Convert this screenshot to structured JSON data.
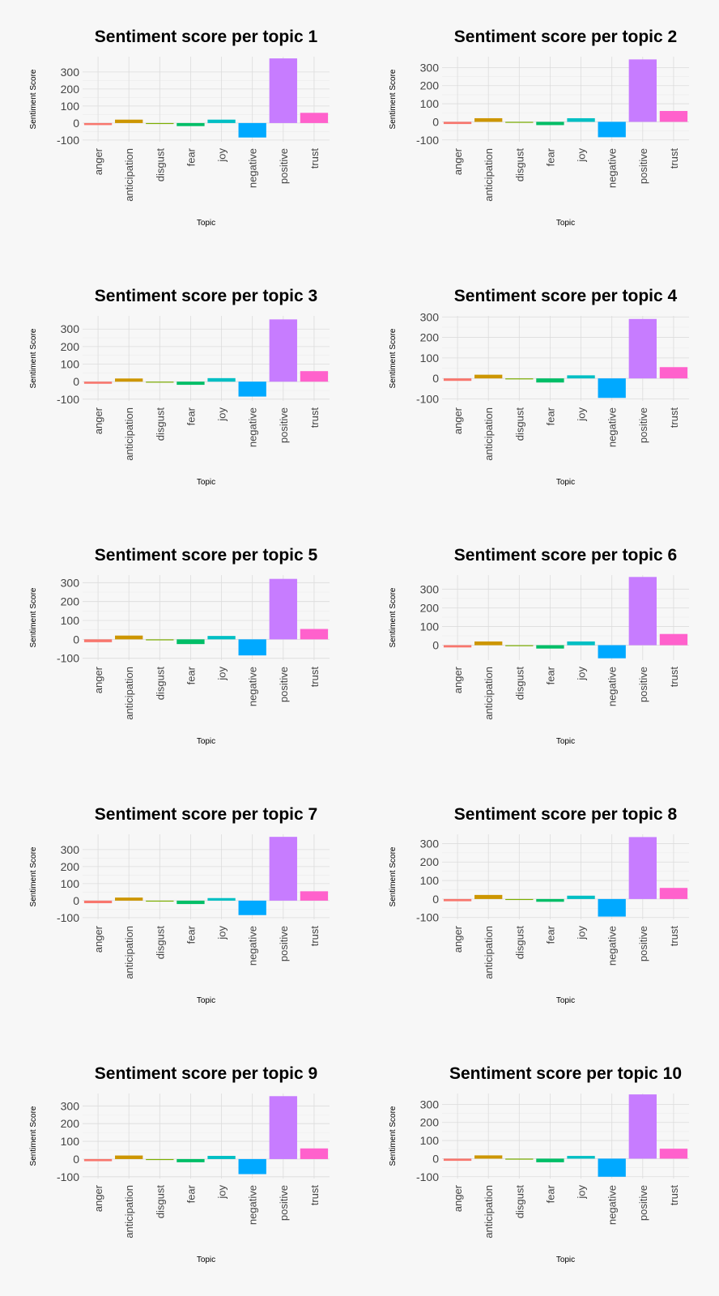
{
  "chart_data": [
    {
      "type": "bar",
      "title": "Sentiment score per topic  1",
      "xlabel": "Topic",
      "ylabel": "Sentiment Score",
      "categories": [
        "anger",
        "anticipation",
        "disgust",
        "fear",
        "joy",
        "negative",
        "positive",
        "trust"
      ],
      "values": [
        -12,
        20,
        -2,
        -18,
        20,
        -85,
        380,
        60
      ],
      "ylim": [
        -110,
        390
      ],
      "yticks": [
        -100,
        0,
        100,
        200,
        300
      ],
      "colors": [
        "#F8766D",
        "#CD9600",
        "#7CAE00",
        "#00BE67",
        "#00BFC4",
        "#00A9FF",
        "#C77CFF",
        "#FF61CC"
      ]
    },
    {
      "type": "bar",
      "title": "Sentiment score per topic  2",
      "xlabel": "Topic",
      "ylabel": "Sentiment Score",
      "categories": [
        "anger",
        "anticipation",
        "disgust",
        "fear",
        "joy",
        "negative",
        "positive",
        "trust"
      ],
      "values": [
        -12,
        20,
        -2,
        -18,
        20,
        -85,
        345,
        60
      ],
      "ylim": [
        -110,
        360
      ],
      "yticks": [
        -100,
        0,
        100,
        200,
        300
      ],
      "colors": [
        "#F8766D",
        "#CD9600",
        "#7CAE00",
        "#00BE67",
        "#00BFC4",
        "#00A9FF",
        "#C77CFF",
        "#FF61CC"
      ]
    },
    {
      "type": "bar",
      "title": "Sentiment score per topic  3",
      "xlabel": "Topic",
      "ylabel": "Sentiment Score",
      "categories": [
        "anger",
        "anticipation",
        "disgust",
        "fear",
        "joy",
        "negative",
        "positive",
        "trust"
      ],
      "values": [
        -12,
        18,
        -3,
        -18,
        20,
        -85,
        355,
        60
      ],
      "ylim": [
        -110,
        375
      ],
      "yticks": [
        -100,
        0,
        100,
        200,
        300
      ],
      "colors": [
        "#F8766D",
        "#CD9600",
        "#7CAE00",
        "#00BE67",
        "#00BFC4",
        "#00A9FF",
        "#C77CFF",
        "#FF61CC"
      ]
    },
    {
      "type": "bar",
      "title": "Sentiment score per topic  4",
      "xlabel": "Topic",
      "ylabel": "Sentiment Score",
      "categories": [
        "anger",
        "anticipation",
        "disgust",
        "fear",
        "joy",
        "negative",
        "positive",
        "trust"
      ],
      "values": [
        -12,
        18,
        -2,
        -20,
        15,
        -95,
        290,
        55
      ],
      "ylim": [
        -110,
        305
      ],
      "yticks": [
        -100,
        0,
        100,
        200,
        300
      ],
      "colors": [
        "#F8766D",
        "#CD9600",
        "#7CAE00",
        "#00BE67",
        "#00BFC4",
        "#00A9FF",
        "#C77CFF",
        "#FF61CC"
      ]
    },
    {
      "type": "bar",
      "title": "Sentiment score per topic  5",
      "xlabel": "Topic",
      "ylabel": "Sentiment Score",
      "categories": [
        "anger",
        "anticipation",
        "disgust",
        "fear",
        "joy",
        "negative",
        "positive",
        "trust"
      ],
      "values": [
        -15,
        20,
        -2,
        -25,
        18,
        -85,
        320,
        55
      ],
      "ylim": [
        -110,
        340
      ],
      "yticks": [
        -100,
        0,
        100,
        200,
        300
      ],
      "colors": [
        "#F8766D",
        "#CD9600",
        "#7CAE00",
        "#00BE67",
        "#00BFC4",
        "#00A9FF",
        "#C77CFF",
        "#FF61CC"
      ]
    },
    {
      "type": "bar",
      "title": "Sentiment score per topic  6",
      "xlabel": "Topic",
      "ylabel": "Sentiment Score",
      "categories": [
        "anger",
        "anticipation",
        "disgust",
        "fear",
        "joy",
        "negative",
        "positive",
        "trust"
      ],
      "values": [
        -12,
        20,
        -2,
        -18,
        20,
        -70,
        365,
        60
      ],
      "ylim": [
        -80,
        375
      ],
      "yticks": [
        0,
        100,
        200,
        300
      ],
      "colors": [
        "#F8766D",
        "#CD9600",
        "#7CAE00",
        "#00BE67",
        "#00BFC4",
        "#00A9FF",
        "#C77CFF",
        "#FF61CC"
      ]
    },
    {
      "type": "bar",
      "title": "Sentiment score per topic  7",
      "xlabel": "Topic",
      "ylabel": "Sentiment Score",
      "categories": [
        "anger",
        "anticipation",
        "disgust",
        "fear",
        "joy",
        "negative",
        "positive",
        "trust"
      ],
      "values": [
        -15,
        18,
        -3,
        -20,
        15,
        -85,
        375,
        55
      ],
      "ylim": [
        -110,
        390
      ],
      "yticks": [
        -100,
        0,
        100,
        200,
        300
      ],
      "colors": [
        "#F8766D",
        "#CD9600",
        "#7CAE00",
        "#00BE67",
        "#00BFC4",
        "#00A9FF",
        "#C77CFF",
        "#FF61CC"
      ]
    },
    {
      "type": "bar",
      "title": "Sentiment score per topic  8",
      "xlabel": "Topic",
      "ylabel": "Sentiment Score",
      "categories": [
        "anger",
        "anticipation",
        "disgust",
        "fear",
        "joy",
        "negative",
        "positive",
        "trust"
      ],
      "values": [
        -12,
        22,
        -2,
        -15,
        18,
        -95,
        335,
        60
      ],
      "ylim": [
        -110,
        350
      ],
      "yticks": [
        -100,
        0,
        100,
        200,
        300
      ],
      "colors": [
        "#F8766D",
        "#CD9600",
        "#7CAE00",
        "#00BE67",
        "#00BFC4",
        "#00A9FF",
        "#C77CFF",
        "#FF61CC"
      ]
    },
    {
      "type": "bar",
      "title": "Sentiment score per topic  9",
      "xlabel": "Topic",
      "ylabel": "Sentiment Score",
      "categories": [
        "anger",
        "anticipation",
        "disgust",
        "fear",
        "joy",
        "negative",
        "positive",
        "trust"
      ],
      "values": [
        -12,
        20,
        -3,
        -18,
        18,
        -85,
        355,
        60
      ],
      "ylim": [
        -110,
        370
      ],
      "yticks": [
        -100,
        0,
        100,
        200,
        300
      ],
      "colors": [
        "#F8766D",
        "#CD9600",
        "#7CAE00",
        "#00BE67",
        "#00BFC4",
        "#00A9FF",
        "#C77CFF",
        "#FF61CC"
      ]
    },
    {
      "type": "bar",
      "title": "Sentiment score per topic  10",
      "xlabel": "Topic",
      "ylabel": "Sentiment Score",
      "categories": [
        "anger",
        "anticipation",
        "disgust",
        "fear",
        "joy",
        "negative",
        "positive",
        "trust"
      ],
      "values": [
        -12,
        18,
        -2,
        -20,
        15,
        -100,
        355,
        55
      ],
      "ylim": [
        -110,
        360
      ],
      "yticks": [
        -100,
        0,
        100,
        200,
        300
      ],
      "colors": [
        "#F8766D",
        "#CD9600",
        "#7CAE00",
        "#00BE67",
        "#00BFC4",
        "#00A9FF",
        "#C77CFF",
        "#FF61CC"
      ]
    }
  ]
}
